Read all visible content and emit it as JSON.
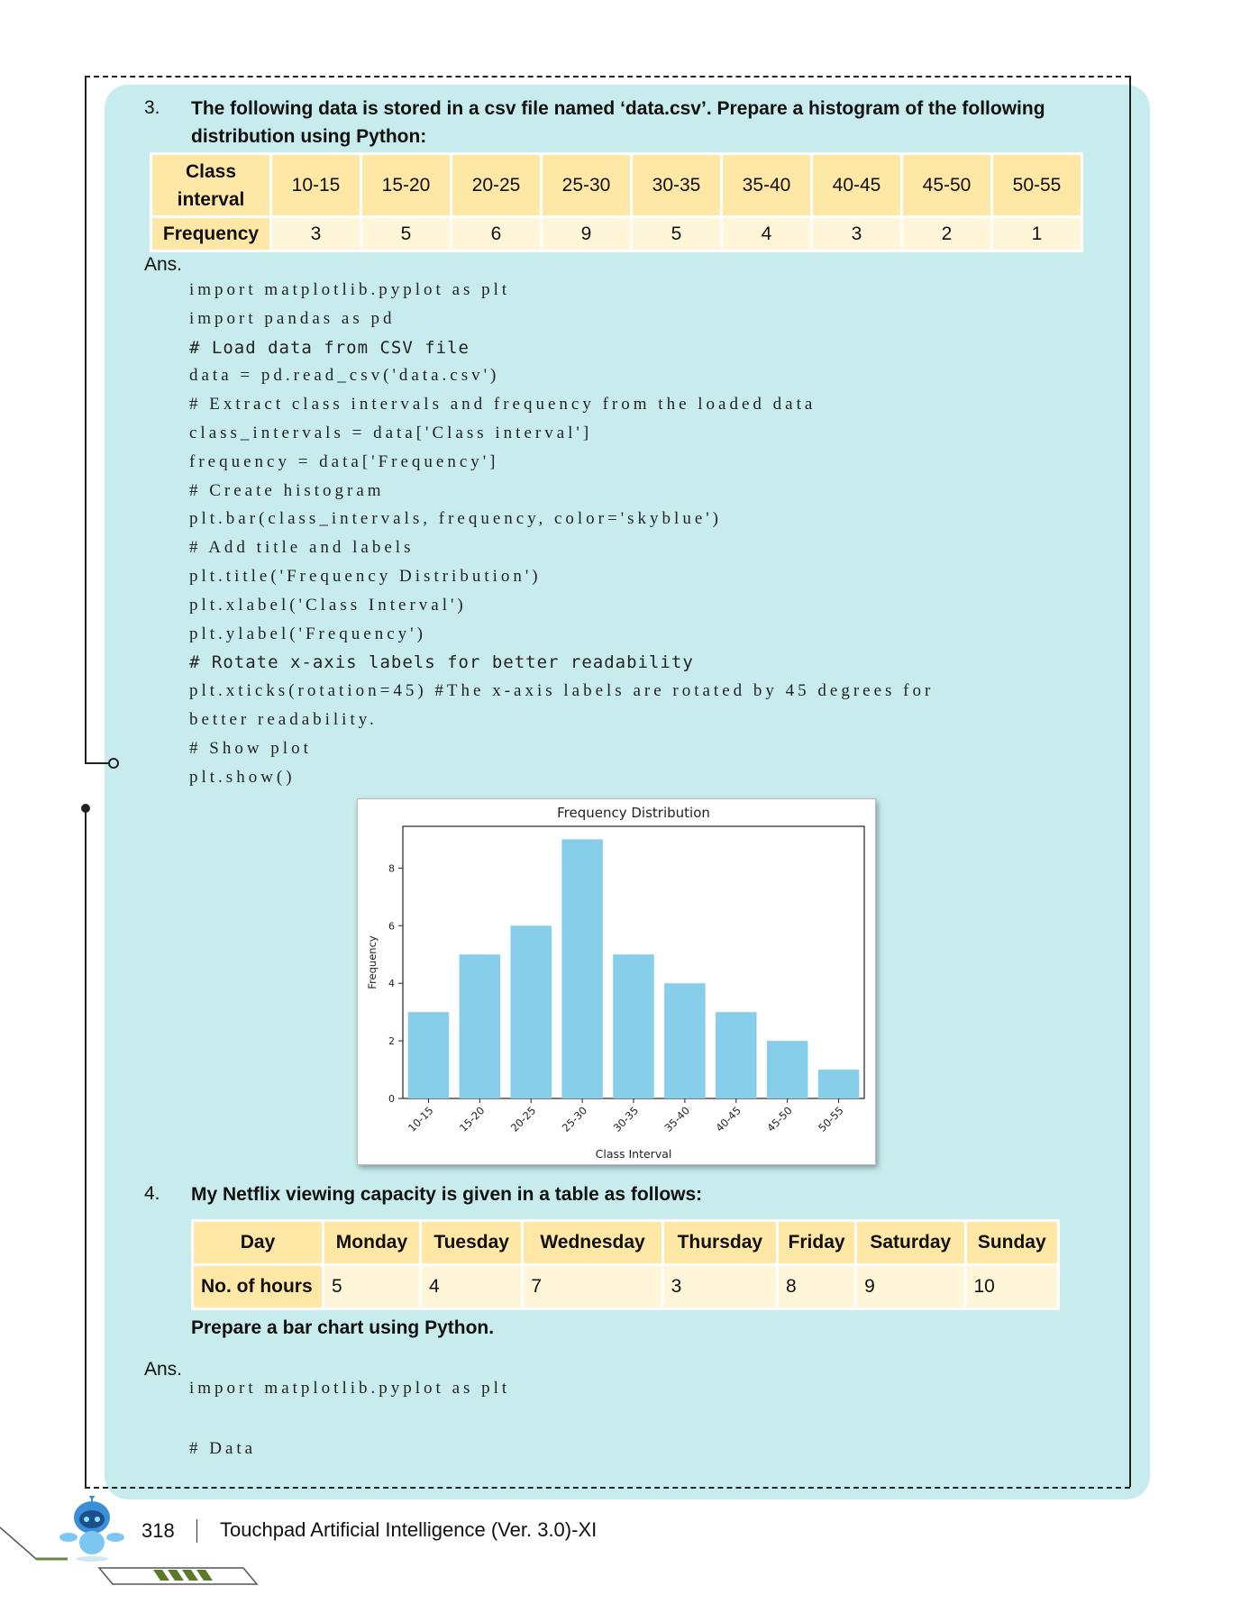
{
  "q3": {
    "number": "3.",
    "text": "The following data is stored in a csv file named ‘data.csv’. Prepare a histogram of the following distribution using Python:",
    "table": {
      "row1_header": [
        "Class",
        "interval"
      ],
      "row2_header": "Frequency",
      "intervals": [
        "10-15",
        "15-20",
        "20-25",
        "25-30",
        "30-35",
        "35-40",
        "40-45",
        "45-50",
        "50-55"
      ],
      "frequencies": [
        "3",
        "5",
        "6",
        "9",
        "5",
        "4",
        "3",
        "2",
        "1"
      ]
    },
    "ans_label": "Ans.",
    "code": [
      {
        "t": "import matplotlib.pyplot as plt",
        "mono": false
      },
      {
        "t": "import pandas as pd",
        "mono": false
      },
      {
        "t": "# Load data from CSV file",
        "mono": true
      },
      {
        "t": "data = pd.read_csv('data.csv')",
        "mono": false
      },
      {
        "t": "# Extract class intervals and frequency from the loaded data",
        "mono": false
      },
      {
        "t": "class_intervals = data['Class interval']",
        "mono": false
      },
      {
        "t": "frequency = data['Frequency']",
        "mono": false
      },
      {
        "t": "# Create histogram",
        "mono": false
      },
      {
        "t": "plt.bar(class_intervals, frequency, color='skyblue')",
        "mono": false
      },
      {
        "t": "# Add title and labels",
        "mono": false
      },
      {
        "t": "plt.title('Frequency Distribution')",
        "mono": false
      },
      {
        "t": "plt.xlabel('Class Interval')",
        "mono": false
      },
      {
        "t": "plt.ylabel('Frequency')",
        "mono": false
      },
      {
        "t": "# Rotate x-axis labels for better readability",
        "mono": true
      },
      {
        "t": "plt.xticks(rotation=45) #The x-axis labels are rotated by 45 degrees for",
        "mono": false
      },
      {
        "t": "better readability.",
        "mono": false
      },
      {
        "t": "# Show plot",
        "mono": false
      },
      {
        "t": "plt.show()",
        "mono": false
      }
    ]
  },
  "chart_data": {
    "type": "bar",
    "title": "Frequency Distribution",
    "xlabel": "Class Interval",
    "ylabel": "Frequency",
    "categories": [
      "10-15",
      "15-20",
      "20-25",
      "25-30",
      "30-35",
      "35-40",
      "40-45",
      "45-50",
      "50-55"
    ],
    "values": [
      3,
      5,
      6,
      9,
      5,
      4,
      3,
      2,
      1
    ],
    "ylim": [
      0,
      9.45
    ],
    "yticks": [
      0,
      2,
      4,
      6,
      8
    ],
    "bar_color": "#87ceeb",
    "grid": false
  },
  "q4": {
    "number": "4.",
    "text": "My Netflix viewing capacity is given in a table as follows:",
    "table": {
      "row1_header": "Day",
      "days": [
        "Monday",
        "Tuesday",
        "Wednesday",
        "Thursday",
        "Friday",
        "Saturday",
        "Sunday"
      ],
      "row2_header": "No. of hours",
      "hours": [
        "5",
        "4",
        "7",
        "3",
        "8",
        "9",
        "10"
      ]
    },
    "instruction": "Prepare a bar chart using Python.",
    "ans_label": "Ans.",
    "code": [
      "import matplotlib.pyplot as plt",
      "# Data"
    ]
  },
  "footer": {
    "page_number": "318",
    "title": "Touchpad Artificial Intelligence (Ver. 3.0)-XI"
  },
  "colors": {
    "panel": "#c8eced",
    "table_header": "#ffe7a6",
    "table_cell": "#fff5d9"
  }
}
